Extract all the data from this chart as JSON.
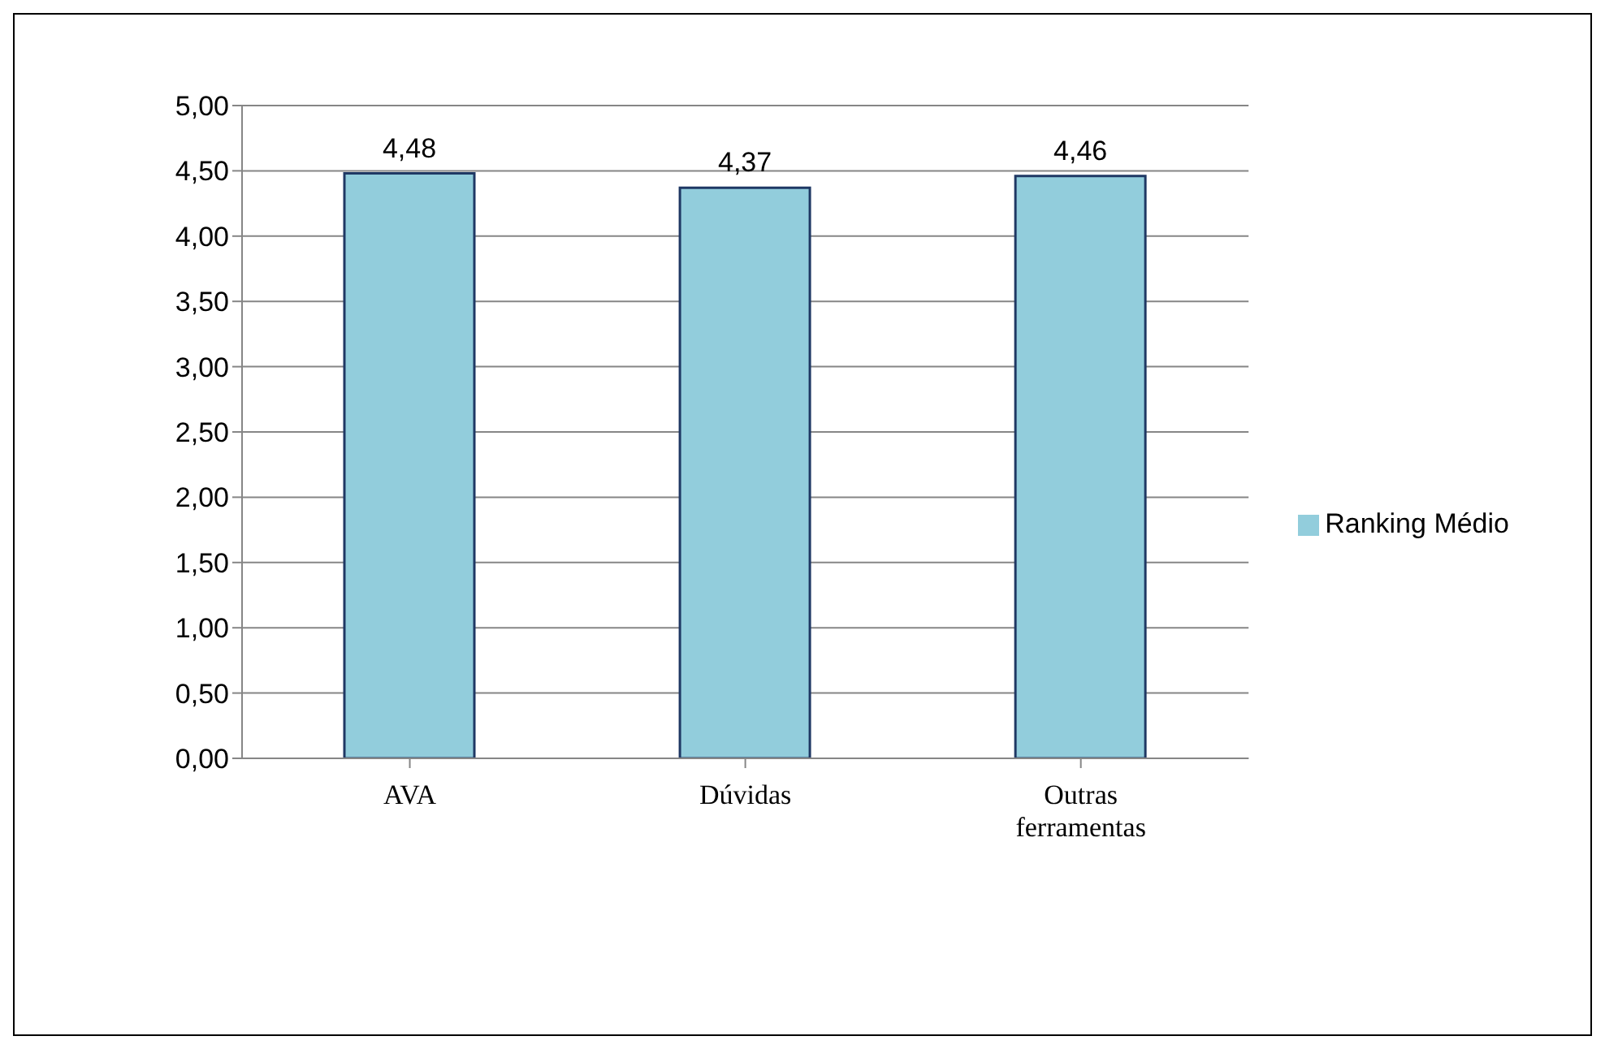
{
  "chart_data": {
    "type": "bar",
    "categories": [
      "AVA",
      "Dúvidas",
      "Outras ferramentas"
    ],
    "series": [
      {
        "name": "Ranking Médio",
        "color": "#92cddc",
        "values": [
          4.48,
          4.37,
          4.46
        ],
        "value_labels": [
          "4,48",
          "4,37",
          "4,46"
        ]
      }
    ],
    "ylim": [
      0,
      5
    ],
    "yticks": [
      {
        "value": 0,
        "label": "0,00"
      },
      {
        "value": 0.5,
        "label": "0,50"
      },
      {
        "value": 1,
        "label": "1,00"
      },
      {
        "value": 1.5,
        "label": "1,50"
      },
      {
        "value": 2,
        "label": "2,00"
      },
      {
        "value": 2.5,
        "label": "2,50"
      },
      {
        "value": 3,
        "label": "3,00"
      },
      {
        "value": 3.5,
        "label": "3,50"
      },
      {
        "value": 4,
        "label": "4,00"
      },
      {
        "value": 4.5,
        "label": "4,50"
      },
      {
        "value": 5,
        "label": "5,00"
      }
    ],
    "grid": "y",
    "legend": "right"
  }
}
